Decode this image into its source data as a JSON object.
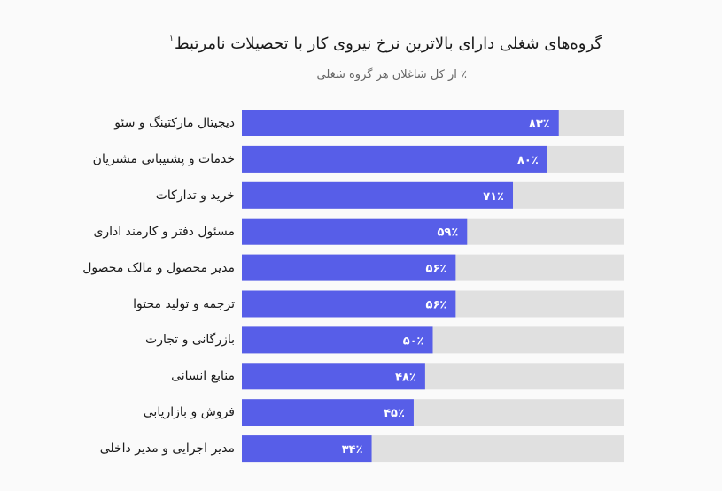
{
  "chart_data": {
    "type": "bar",
    "orientation": "horizontal",
    "title": "گروه‌های شغلی دارای بالاترین نرخ نیروی کار با تحصیلات نامرتبط",
    "title_footnote": "۱",
    "subtitle": "٪ از کل شاغلان هر گروه شغلی",
    "xlim": [
      0,
      100
    ],
    "grid": false,
    "categories": [
      "دیجیتال مارکتینگ و سئو",
      "خدمات و پشتیبانی مشتریان",
      "خرید و تدارکات",
      "مسئول دفتر و کارمند اداری",
      "مدیر محصول و مالک محصول",
      "ترجمه و تولید محتوا",
      "بازرگانی و تجارت",
      "منابع انسانی",
      "فروش و بازاریابی",
      "مدیر اجرایی و مدیر داخلی"
    ],
    "values": [
      83,
      80,
      71,
      59,
      56,
      56,
      50,
      48,
      45,
      34
    ],
    "data_labels": [
      "۸۳٪",
      "۸۰٪",
      "۷۱٪",
      "۵۹٪",
      "۵۶٪",
      "۵۶٪",
      "۵۰٪",
      "۴۸٪",
      "۴۵٪",
      "۳۴٪"
    ],
    "colors": {
      "bar": "#575ee8",
      "track": "#e0e0e0",
      "background": "#fafafa"
    }
  }
}
